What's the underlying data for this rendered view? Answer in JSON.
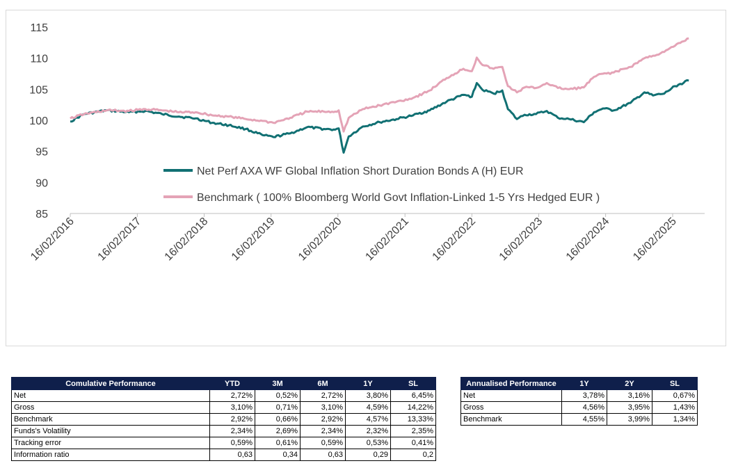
{
  "chart_data": {
    "type": "line",
    "title": "",
    "xlabel": "",
    "ylabel": "",
    "ylim": [
      85,
      115
    ],
    "y_ticks": [
      "85",
      "90",
      "95",
      "100",
      "105",
      "110",
      "115"
    ],
    "x_range": [
      "2016-02-16",
      "2025-05-15"
    ],
    "x_tick_dates": [
      "2016-02-16",
      "2017-02-16",
      "2018-02-16",
      "2019-02-16",
      "2020-02-16",
      "2021-02-16",
      "2022-02-16",
      "2023-02-16",
      "2024-02-16",
      "2025-02-16"
    ],
    "x_tick_labels": [
      "16/02/2016",
      "16/02/2017",
      "16/02/2018",
      "16/02/2019",
      "16/02/2020",
      "16/02/2021",
      "16/02/2022",
      "16/02/2023",
      "16/02/2024",
      "16/02/2025"
    ],
    "grid": false,
    "legend_position": "inside-bottom-center",
    "series": [
      {
        "name": "Net Perf AXA WF Global Inflation Short Duration Bonds A (H) EUR",
        "color": "#117073",
        "points": [
          [
            "2016-02-16",
            99.8
          ],
          [
            "2016-05-01",
            101.0
          ],
          [
            "2016-09-01",
            101.6
          ],
          [
            "2017-01-01",
            101.3
          ],
          [
            "2017-04-01",
            101.5
          ],
          [
            "2017-07-01",
            101.0
          ],
          [
            "2017-10-01",
            100.6
          ],
          [
            "2018-01-01",
            100.3
          ],
          [
            "2018-04-01",
            99.6
          ],
          [
            "2018-07-01",
            99.2
          ],
          [
            "2018-10-01",
            98.6
          ],
          [
            "2019-01-01",
            97.6
          ],
          [
            "2019-03-01",
            97.3
          ],
          [
            "2019-06-01",
            97.9
          ],
          [
            "2019-09-01",
            98.9
          ],
          [
            "2019-12-01",
            98.6
          ],
          [
            "2020-02-01",
            98.5
          ],
          [
            "2020-02-20",
            98.7
          ],
          [
            "2020-03-18",
            94.8
          ],
          [
            "2020-04-15",
            97.4
          ],
          [
            "2020-07-01",
            99.0
          ],
          [
            "2020-10-01",
            99.7
          ],
          [
            "2021-01-01",
            100.2
          ],
          [
            "2021-04-01",
            100.8
          ],
          [
            "2021-07-01",
            101.6
          ],
          [
            "2021-10-01",
            103.0
          ],
          [
            "2022-01-01",
            104.1
          ],
          [
            "2022-02-16",
            103.8
          ],
          [
            "2022-03-15",
            106.0
          ],
          [
            "2022-04-15",
            104.9
          ],
          [
            "2022-06-15",
            104.3
          ],
          [
            "2022-08-01",
            104.8
          ],
          [
            "2022-09-01",
            101.8
          ],
          [
            "2022-10-20",
            100.2
          ],
          [
            "2022-12-01",
            100.9
          ],
          [
            "2023-02-01",
            101.0
          ],
          [
            "2023-04-01",
            101.5
          ],
          [
            "2023-06-01",
            100.4
          ],
          [
            "2023-08-01",
            100.2
          ],
          [
            "2023-10-20",
            99.7
          ],
          [
            "2023-12-15",
            101.3
          ],
          [
            "2024-02-01",
            101.9
          ],
          [
            "2024-04-01",
            101.6
          ],
          [
            "2024-07-01",
            102.8
          ],
          [
            "2024-09-15",
            104.5
          ],
          [
            "2024-11-01",
            104.0
          ],
          [
            "2025-01-01",
            104.3
          ],
          [
            "2025-03-01",
            105.5
          ],
          [
            "2025-05-15",
            106.4
          ]
        ]
      },
      {
        "name": "Benchmark ( 100% Bloomberg World Govt Inflation-Linked 1-5 Yrs Hedged EUR  )",
        "color": "#e4a3b6",
        "points": [
          [
            "2016-02-16",
            100.3
          ],
          [
            "2016-05-01",
            101.0
          ],
          [
            "2016-09-01",
            101.6
          ],
          [
            "2017-01-01",
            101.5
          ],
          [
            "2017-04-01",
            101.8
          ],
          [
            "2017-07-01",
            101.6
          ],
          [
            "2017-10-01",
            101.3
          ],
          [
            "2018-01-01",
            101.3
          ],
          [
            "2018-04-01",
            100.8
          ],
          [
            "2018-07-01",
            100.6
          ],
          [
            "2018-10-01",
            100.2
          ],
          [
            "2019-01-01",
            99.9
          ],
          [
            "2019-03-01",
            99.6
          ],
          [
            "2019-06-01",
            100.4
          ],
          [
            "2019-09-01",
            101.4
          ],
          [
            "2019-12-01",
            101.4
          ],
          [
            "2020-02-01",
            101.4
          ],
          [
            "2020-02-20",
            101.6
          ],
          [
            "2020-03-18",
            98.2
          ],
          [
            "2020-04-15",
            100.4
          ],
          [
            "2020-07-01",
            101.8
          ],
          [
            "2020-10-01",
            102.4
          ],
          [
            "2021-01-01",
            103.0
          ],
          [
            "2021-04-01",
            103.6
          ],
          [
            "2021-07-01",
            104.8
          ],
          [
            "2021-10-01",
            106.8
          ],
          [
            "2022-01-01",
            108.3
          ],
          [
            "2022-02-16",
            107.9
          ],
          [
            "2022-03-15",
            110.1
          ],
          [
            "2022-04-15",
            108.9
          ],
          [
            "2022-06-15",
            108.3
          ],
          [
            "2022-08-01",
            108.6
          ],
          [
            "2022-09-01",
            105.5
          ],
          [
            "2022-10-20",
            104.5
          ],
          [
            "2022-12-01",
            105.3
          ],
          [
            "2023-02-01",
            105.2
          ],
          [
            "2023-04-01",
            106.0
          ],
          [
            "2023-06-01",
            105.2
          ],
          [
            "2023-08-01",
            105.0
          ],
          [
            "2023-10-20",
            105.3
          ],
          [
            "2023-12-15",
            107.0
          ],
          [
            "2024-02-01",
            107.5
          ],
          [
            "2024-04-01",
            107.7
          ],
          [
            "2024-07-01",
            108.6
          ],
          [
            "2024-09-15",
            110.0
          ],
          [
            "2024-11-01",
            110.4
          ],
          [
            "2025-01-01",
            111.0
          ],
          [
            "2025-03-01",
            112.0
          ],
          [
            "2025-05-15",
            113.2
          ]
        ]
      }
    ]
  },
  "cumulative_table": {
    "columns": [
      "Comulative Performance",
      "YTD",
      "3M",
      "6M",
      "1Y",
      "SL"
    ],
    "rows": [
      {
        "label": "Net",
        "values": [
          "2,72%",
          "0,52%",
          "2,72%",
          "3,80%",
          "6,45%"
        ]
      },
      {
        "label": "Gross",
        "values": [
          "3,10%",
          "0,71%",
          "3,10%",
          "4,59%",
          "14,22%"
        ]
      },
      {
        "label": "Benchmark",
        "values": [
          "2,92%",
          "0,66%",
          "2,92%",
          "4,57%",
          "13,33%"
        ]
      },
      {
        "label": "Funds's Volatility",
        "values": [
          "2,34%",
          "2,69%",
          "2,34%",
          "2,32%",
          "2,35%"
        ]
      },
      {
        "label": "Tracking error",
        "values": [
          "0,59%",
          "0,61%",
          "0,59%",
          "0,53%",
          "0,41%"
        ]
      },
      {
        "label": "Information ratio",
        "values": [
          "0,63",
          "0,34",
          "0,63",
          "0,29",
          "0,2"
        ]
      }
    ]
  },
  "annualised_table": {
    "columns": [
      "Annualised Performance",
      "1Y",
      "2Y",
      "SL"
    ],
    "rows": [
      {
        "label": "Net",
        "values": [
          "3,78%",
          "3,16%",
          "0,67%"
        ]
      },
      {
        "label": "Gross",
        "values": [
          "4,56%",
          "3,95%",
          "1,43%"
        ]
      },
      {
        "label": "Benchmark",
        "values": [
          "4,55%",
          "3,99%",
          "1,34%"
        ]
      }
    ]
  }
}
